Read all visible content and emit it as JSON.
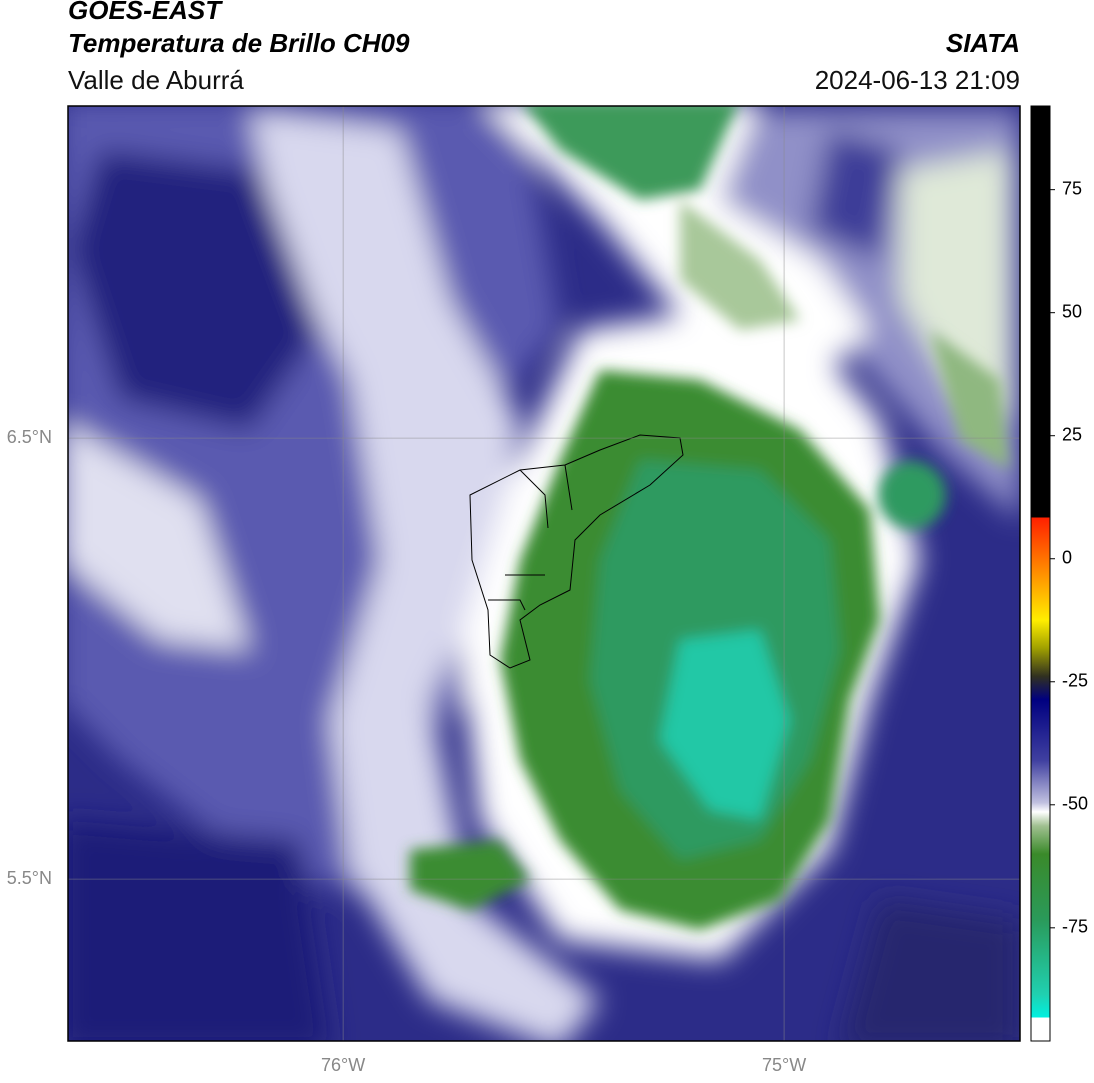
{
  "chart_data": {
    "type": "map",
    "title": "GOES-EAST",
    "subtitle": "Temperatura de Brillo CH09",
    "region": "Valle de Aburrá",
    "source": "SIATA",
    "datetime": "2024-06-13 21:09",
    "xlim": [
      -76.624,
      -74.465
    ],
    "ylim": [
      5.133,
      7.253
    ],
    "xticks": [
      {
        "value": -76,
        "label": "76°W"
      },
      {
        "value": -75,
        "label": "75°W"
      }
    ],
    "yticks": [
      {
        "value": 5.5,
        "label": "5.5°N"
      },
      {
        "value": 6.5,
        "label": "6.5°N"
      }
    ],
    "grid": true,
    "colorbar": {
      "lim": [
        -98,
        92
      ],
      "ticks": [
        -75,
        -50,
        -25,
        0,
        25,
        50,
        75
      ]
    }
  }
}
